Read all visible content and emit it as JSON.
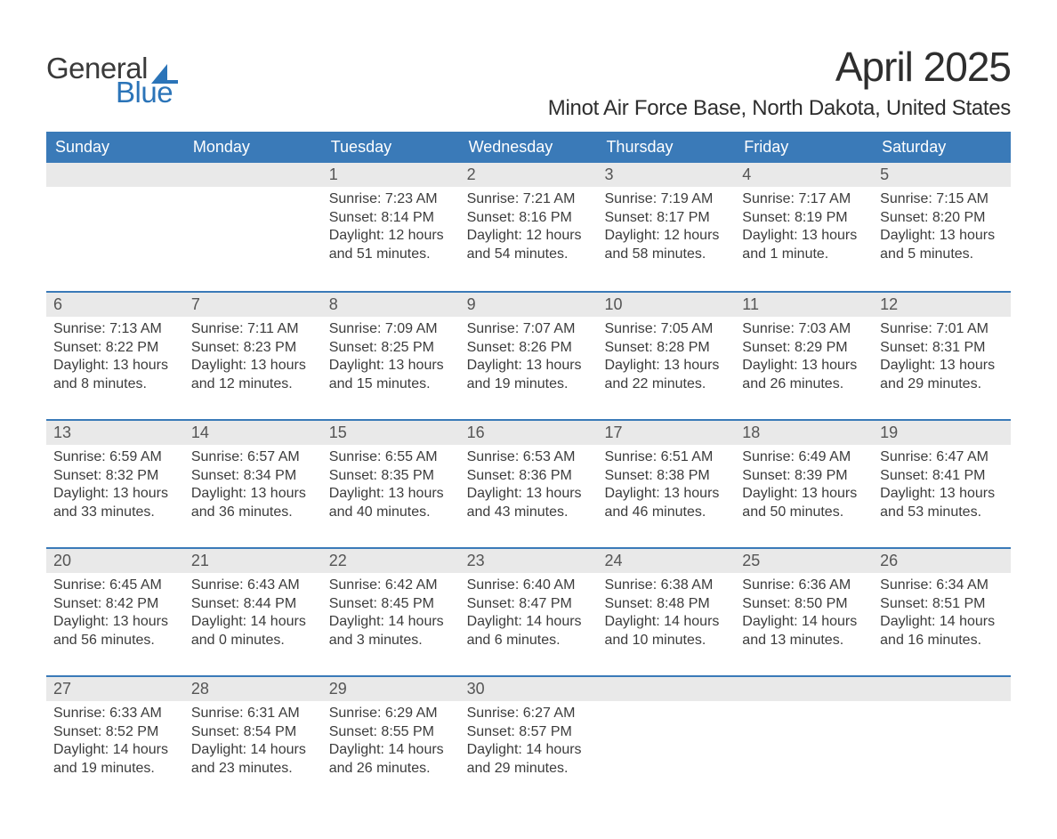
{
  "logo": {
    "line1": "General",
    "line2": "Blue"
  },
  "title": "April 2025",
  "location": "Minot Air Force Base, North Dakota, United States",
  "colors": {
    "header_bg": "#3a7ab8",
    "header_text": "#ffffff",
    "daynum_bg": "#e9e9e9",
    "week_border": "#3a7ab8",
    "text": "#3c3c3c",
    "logo_blue": "#2b74b8"
  },
  "daysOfWeek": [
    "Sunday",
    "Monday",
    "Tuesday",
    "Wednesday",
    "Thursday",
    "Friday",
    "Saturday"
  ],
  "weeks": [
    [
      {
        "n": "",
        "sr": "",
        "ss": "",
        "dl": ""
      },
      {
        "n": "",
        "sr": "",
        "ss": "",
        "dl": ""
      },
      {
        "n": "1",
        "sr": "Sunrise: 7:23 AM",
        "ss": "Sunset: 8:14 PM",
        "dl": "Daylight: 12 hours and 51 minutes."
      },
      {
        "n": "2",
        "sr": "Sunrise: 7:21 AM",
        "ss": "Sunset: 8:16 PM",
        "dl": "Daylight: 12 hours and 54 minutes."
      },
      {
        "n": "3",
        "sr": "Sunrise: 7:19 AM",
        "ss": "Sunset: 8:17 PM",
        "dl": "Daylight: 12 hours and 58 minutes."
      },
      {
        "n": "4",
        "sr": "Sunrise: 7:17 AM",
        "ss": "Sunset: 8:19 PM",
        "dl": "Daylight: 13 hours and 1 minute."
      },
      {
        "n": "5",
        "sr": "Sunrise: 7:15 AM",
        "ss": "Sunset: 8:20 PM",
        "dl": "Daylight: 13 hours and 5 minutes."
      }
    ],
    [
      {
        "n": "6",
        "sr": "Sunrise: 7:13 AM",
        "ss": "Sunset: 8:22 PM",
        "dl": "Daylight: 13 hours and 8 minutes."
      },
      {
        "n": "7",
        "sr": "Sunrise: 7:11 AM",
        "ss": "Sunset: 8:23 PM",
        "dl": "Daylight: 13 hours and 12 minutes."
      },
      {
        "n": "8",
        "sr": "Sunrise: 7:09 AM",
        "ss": "Sunset: 8:25 PM",
        "dl": "Daylight: 13 hours and 15 minutes."
      },
      {
        "n": "9",
        "sr": "Sunrise: 7:07 AM",
        "ss": "Sunset: 8:26 PM",
        "dl": "Daylight: 13 hours and 19 minutes."
      },
      {
        "n": "10",
        "sr": "Sunrise: 7:05 AM",
        "ss": "Sunset: 8:28 PM",
        "dl": "Daylight: 13 hours and 22 minutes."
      },
      {
        "n": "11",
        "sr": "Sunrise: 7:03 AM",
        "ss": "Sunset: 8:29 PM",
        "dl": "Daylight: 13 hours and 26 minutes."
      },
      {
        "n": "12",
        "sr": "Sunrise: 7:01 AM",
        "ss": "Sunset: 8:31 PM",
        "dl": "Daylight: 13 hours and 29 minutes."
      }
    ],
    [
      {
        "n": "13",
        "sr": "Sunrise: 6:59 AM",
        "ss": "Sunset: 8:32 PM",
        "dl": "Daylight: 13 hours and 33 minutes."
      },
      {
        "n": "14",
        "sr": "Sunrise: 6:57 AM",
        "ss": "Sunset: 8:34 PM",
        "dl": "Daylight: 13 hours and 36 minutes."
      },
      {
        "n": "15",
        "sr": "Sunrise: 6:55 AM",
        "ss": "Sunset: 8:35 PM",
        "dl": "Daylight: 13 hours and 40 minutes."
      },
      {
        "n": "16",
        "sr": "Sunrise: 6:53 AM",
        "ss": "Sunset: 8:36 PM",
        "dl": "Daylight: 13 hours and 43 minutes."
      },
      {
        "n": "17",
        "sr": "Sunrise: 6:51 AM",
        "ss": "Sunset: 8:38 PM",
        "dl": "Daylight: 13 hours and 46 minutes."
      },
      {
        "n": "18",
        "sr": "Sunrise: 6:49 AM",
        "ss": "Sunset: 8:39 PM",
        "dl": "Daylight: 13 hours and 50 minutes."
      },
      {
        "n": "19",
        "sr": "Sunrise: 6:47 AM",
        "ss": "Sunset: 8:41 PM",
        "dl": "Daylight: 13 hours and 53 minutes."
      }
    ],
    [
      {
        "n": "20",
        "sr": "Sunrise: 6:45 AM",
        "ss": "Sunset: 8:42 PM",
        "dl": "Daylight: 13 hours and 56 minutes."
      },
      {
        "n": "21",
        "sr": "Sunrise: 6:43 AM",
        "ss": "Sunset: 8:44 PM",
        "dl": "Daylight: 14 hours and 0 minutes."
      },
      {
        "n": "22",
        "sr": "Sunrise: 6:42 AM",
        "ss": "Sunset: 8:45 PM",
        "dl": "Daylight: 14 hours and 3 minutes."
      },
      {
        "n": "23",
        "sr": "Sunrise: 6:40 AM",
        "ss": "Sunset: 8:47 PM",
        "dl": "Daylight: 14 hours and 6 minutes."
      },
      {
        "n": "24",
        "sr": "Sunrise: 6:38 AM",
        "ss": "Sunset: 8:48 PM",
        "dl": "Daylight: 14 hours and 10 minutes."
      },
      {
        "n": "25",
        "sr": "Sunrise: 6:36 AM",
        "ss": "Sunset: 8:50 PM",
        "dl": "Daylight: 14 hours and 13 minutes."
      },
      {
        "n": "26",
        "sr": "Sunrise: 6:34 AM",
        "ss": "Sunset: 8:51 PM",
        "dl": "Daylight: 14 hours and 16 minutes."
      }
    ],
    [
      {
        "n": "27",
        "sr": "Sunrise: 6:33 AM",
        "ss": "Sunset: 8:52 PM",
        "dl": "Daylight: 14 hours and 19 minutes."
      },
      {
        "n": "28",
        "sr": "Sunrise: 6:31 AM",
        "ss": "Sunset: 8:54 PM",
        "dl": "Daylight: 14 hours and 23 minutes."
      },
      {
        "n": "29",
        "sr": "Sunrise: 6:29 AM",
        "ss": "Sunset: 8:55 PM",
        "dl": "Daylight: 14 hours and 26 minutes."
      },
      {
        "n": "30",
        "sr": "Sunrise: 6:27 AM",
        "ss": "Sunset: 8:57 PM",
        "dl": "Daylight: 14 hours and 29 minutes."
      },
      {
        "n": "",
        "sr": "",
        "ss": "",
        "dl": ""
      },
      {
        "n": "",
        "sr": "",
        "ss": "",
        "dl": ""
      },
      {
        "n": "",
        "sr": "",
        "ss": "",
        "dl": ""
      }
    ]
  ]
}
